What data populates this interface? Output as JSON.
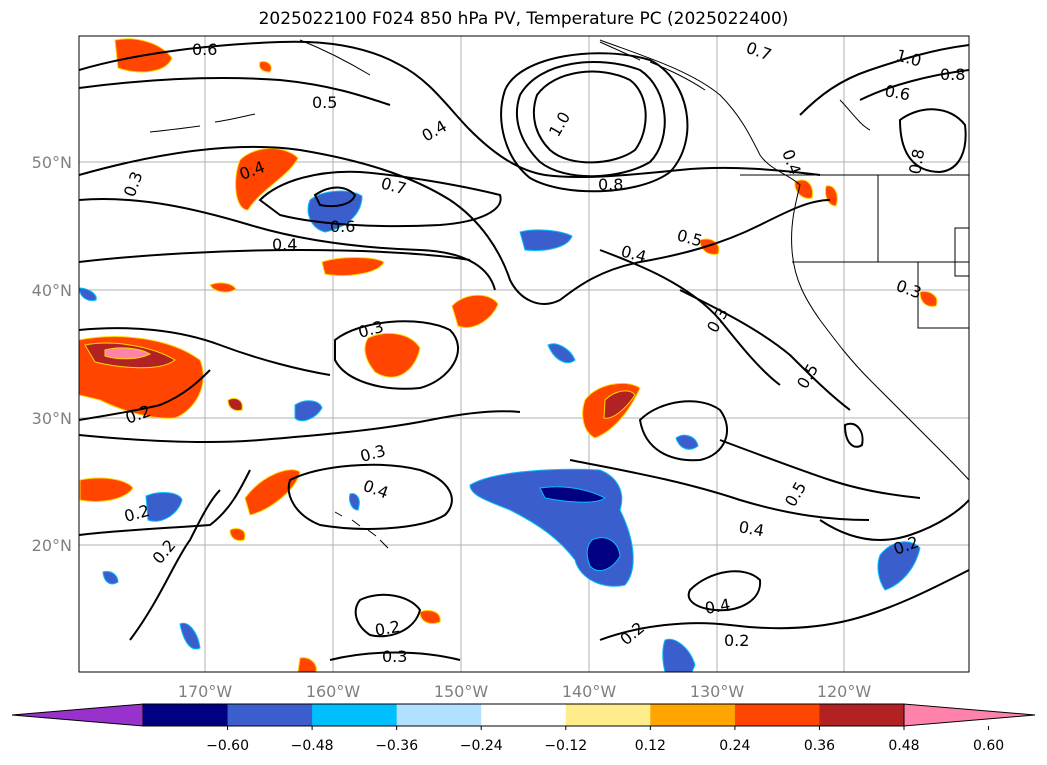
{
  "title": "2025022100 F024 850 hPa PV, Temperature PC (2025022400)",
  "map": {
    "lon_ticks": [
      "170°W",
      "160°W",
      "150°W",
      "140°W",
      "130°W",
      "120°W"
    ],
    "lat_ticks": [
      "50°N",
      "40°N",
      "30°N",
      "20°N"
    ],
    "contour_labels": [
      "0.6",
      "0.4",
      "0.5",
      "0.4",
      "1.0",
      "0.7",
      "0.8",
      "1.0",
      "0.8",
      "0.6",
      "0.3",
      "0.4",
      "0.7",
      "0.6",
      "0.4",
      "0.8",
      "0.5",
      "0.4",
      "0.3",
      "0.3",
      "0.3",
      "0.5",
      "0.2",
      "0.3",
      "0.4",
      "0.2",
      "0.2",
      "0.5",
      "0.4",
      "0.2",
      "0.2",
      "0.3",
      "0.4",
      "0.2",
      "0.2"
    ],
    "gridline_color": "#b0b0b0",
    "contour_color": "#000000"
  },
  "colorbar": {
    "ticks": [
      "−0.60",
      "−0.48",
      "−0.36",
      "−0.24",
      "−0.12",
      "0.12",
      "0.24",
      "0.36",
      "0.48",
      "0.60"
    ],
    "colors": [
      "#9932cc",
      "#000080",
      "#3a5fcd",
      "#00bfff",
      "#b0e2ff",
      "#ffffff",
      "#ffec8b",
      "#ffa500",
      "#ff4500",
      "#b22222",
      "#ff82ab"
    ]
  }
}
